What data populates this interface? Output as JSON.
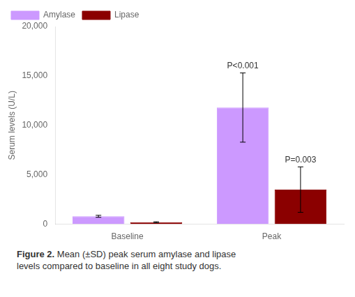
{
  "chart_data": {
    "type": "bar",
    "categories": [
      "Baseline",
      "Peak"
    ],
    "series": [
      {
        "name": "Amylase",
        "color": "#cc99ff",
        "values": [
          800,
          11800
        ],
        "errors": [
          100,
          3500
        ]
      },
      {
        "name": "Lipase",
        "color": "#8b0000",
        "values": [
          200,
          3500
        ],
        "errors": [
          50,
          2300
        ]
      }
    ],
    "ylabel": "Serum levels (U/L)",
    "ylim": [
      0,
      20000
    ],
    "yticks": [
      0,
      {
        "value": 5000,
        "label": "5,000"
      },
      {
        "value": 10000,
        "label": "10,000"
      },
      {
        "value": 15000,
        "label": "15,000"
      },
      {
        "value": 20000,
        "label": "20,000"
      }
    ],
    "grid": false,
    "legend": "upper left",
    "annotations": [
      {
        "text": "P<0.001",
        "series": "Amylase",
        "category": "Peak"
      },
      {
        "text": "P=0.003",
        "series": "Lipase",
        "category": "Peak"
      }
    ],
    "caption_title": "Figure 2.",
    "caption": [
      "Mean (±SD) peak serum amylase and lipase",
      "levels compared to baseline in all eight study dogs."
    ]
  }
}
